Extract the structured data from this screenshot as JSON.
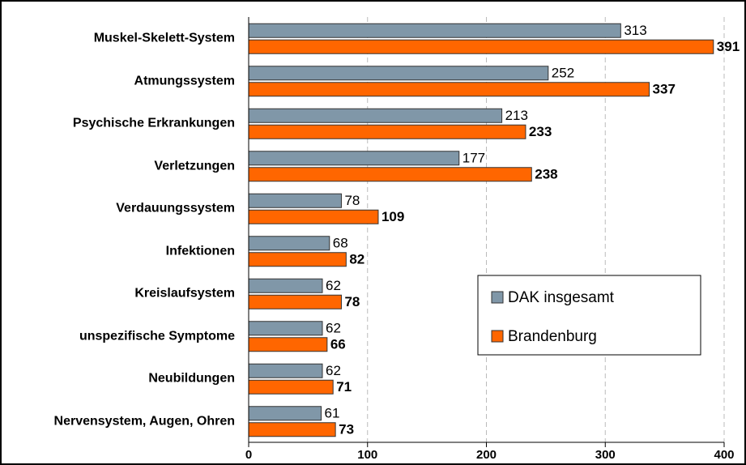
{
  "chart_data": {
    "type": "hbar",
    "categories": [
      "Muskel-Skelett-System",
      "Atmungssystem",
      "Psychische Erkrankungen",
      "Verletzungen",
      "Verdauungssystem",
      "Infektionen",
      "Kreislaufsystem",
      "unspezifische Symptome",
      "Neubildungen",
      "Nervensystem, Augen, Ohren"
    ],
    "series": [
      {
        "name": "DAK insgesamt",
        "color": "#8097a8",
        "values": [
          313,
          252,
          213,
          177,
          78,
          68,
          62,
          62,
          62,
          61
        ]
      },
      {
        "name": "Brandenburg",
        "color": "#ff6600",
        "values": [
          391,
          337,
          233,
          238,
          109,
          82,
          78,
          66,
          71,
          73
        ]
      }
    ],
    "xlim": [
      0,
      400
    ],
    "xticks": [
      0,
      100,
      200,
      300,
      400
    ],
    "grid": true
  }
}
